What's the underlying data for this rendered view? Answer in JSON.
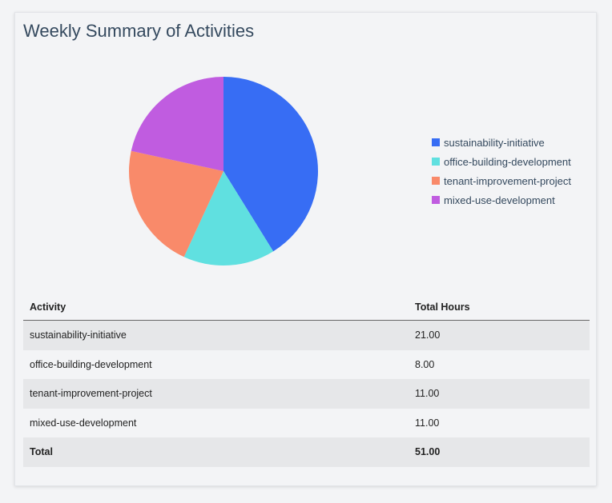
{
  "title": "Weekly Summary of Activities",
  "chart_data": {
    "type": "pie",
    "categories": [
      "sustainability-initiative",
      "office-building-development",
      "tenant-improvement-project",
      "mixed-use-development"
    ],
    "values": [
      21,
      8,
      11,
      11
    ],
    "colors": [
      "#376df4",
      "#60e0e0",
      "#f98a6a",
      "#c05ce0"
    ],
    "legend_position": "right"
  },
  "table": {
    "headers": [
      "Activity",
      "Total Hours"
    ],
    "rows": [
      [
        "sustainability-initiative",
        "21.00"
      ],
      [
        "office-building-development",
        "8.00"
      ],
      [
        "tenant-improvement-project",
        "11.00"
      ],
      [
        "mixed-use-development",
        "11.00"
      ]
    ],
    "total": [
      "Total",
      "51.00"
    ]
  }
}
